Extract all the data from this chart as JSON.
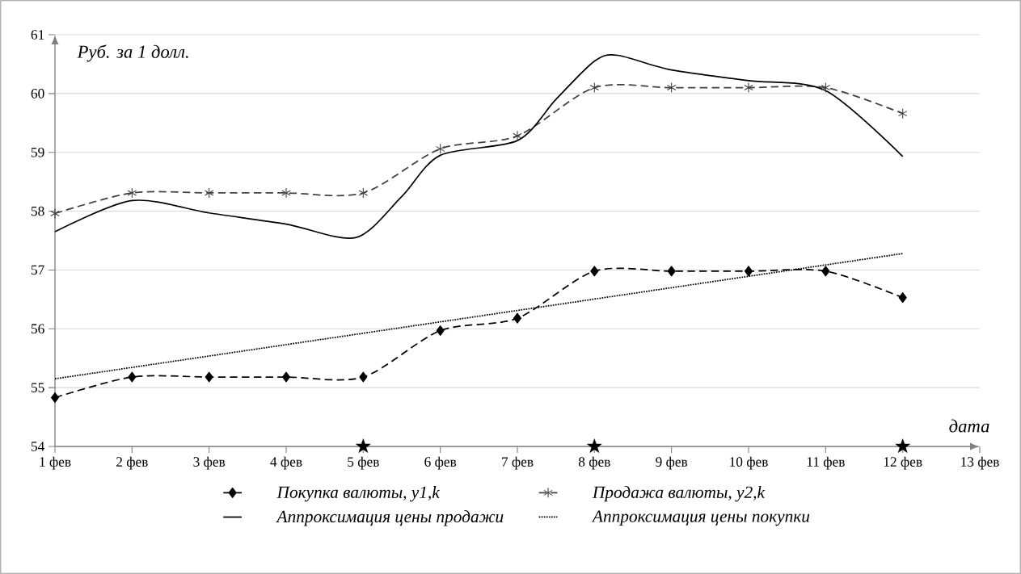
{
  "chart_data": {
    "type": "line",
    "xlabel": "дата",
    "ylabel": "Руб. за 1 долл.",
    "xlim": [
      1,
      13
    ],
    "ylim": [
      54,
      61
    ],
    "xticks": [
      {
        "value": 1,
        "label": "1 фев"
      },
      {
        "value": 2,
        "label": "2 фев"
      },
      {
        "value": 3,
        "label": "3 фев"
      },
      {
        "value": 4,
        "label": "4 фев"
      },
      {
        "value": 5,
        "label": "5 фев"
      },
      {
        "value": 6,
        "label": "6 фев"
      },
      {
        "value": 7,
        "label": "7 фев"
      },
      {
        "value": 8,
        "label": "8 фев"
      },
      {
        "value": 9,
        "label": "9 фев"
      },
      {
        "value": 10,
        "label": "10 фев"
      },
      {
        "value": 11,
        "label": "11 фев"
      },
      {
        "value": 12,
        "label": "12 фев"
      },
      {
        "value": 13,
        "label": "13 фев"
      }
    ],
    "yticks": [
      54,
      55,
      56,
      57,
      58,
      59,
      60,
      61
    ],
    "grid": "y",
    "legend": "bottom",
    "series": [
      {
        "name": "Покупка валюты, *y1,k*",
        "color": "#000000",
        "line_style": "dashed",
        "marker": "diamond",
        "x": [
          1,
          2,
          3,
          4,
          5,
          6,
          7,
          8,
          9,
          10,
          11,
          12
        ],
        "values": [
          54.83,
          55.18,
          55.18,
          55.18,
          55.18,
          55.97,
          56.18,
          56.98,
          56.98,
          56.98,
          56.98,
          56.53
        ]
      },
      {
        "name": "Продажа валюты, *y2,k*",
        "color": "#404040",
        "line_style": "dashed",
        "marker": "cross",
        "x": [
          1,
          2,
          3,
          4,
          5,
          6,
          7,
          8,
          9,
          10,
          11,
          12
        ],
        "values": [
          57.96,
          58.31,
          58.31,
          58.31,
          58.31,
          59.06,
          59.28,
          60.1,
          60.1,
          60.1,
          60.1,
          59.66
        ]
      },
      {
        "name": "Аппроксимация цены продажи",
        "color": "#000000",
        "line_style": "solid",
        "marker": "none",
        "x": [
          1,
          2,
          3,
          4,
          4.9,
          5.5,
          6,
          7,
          7.5,
          8,
          8.3,
          9,
          10,
          11,
          12
        ],
        "values": [
          57.65,
          58.18,
          57.97,
          57.78,
          57.55,
          58.25,
          58.95,
          59.2,
          59.9,
          60.55,
          60.65,
          60.4,
          60.22,
          60.05,
          58.93
        ]
      },
      {
        "name": "Аппроксимация цены покупки",
        "color": "#000000",
        "line_style": "dotted",
        "marker": "none",
        "x": [
          1,
          12
        ],
        "values": [
          55.15,
          57.28
        ]
      },
      {
        "type": "scatter",
        "color": "#000000",
        "marker": "star",
        "x": [
          5,
          8,
          12
        ],
        "values": [
          54,
          54,
          54
        ]
      }
    ]
  }
}
